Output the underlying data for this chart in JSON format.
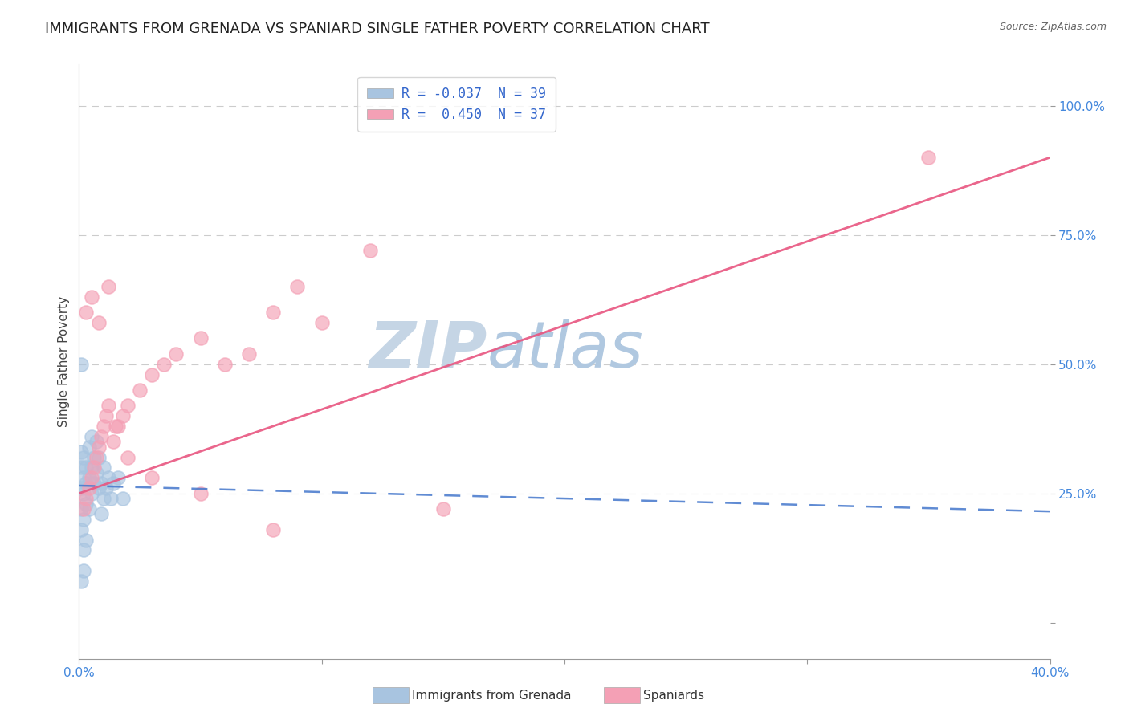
{
  "title": "IMMIGRANTS FROM GRENADA VS SPANIARD SINGLE FATHER POVERTY CORRELATION CHART",
  "source": "Source: ZipAtlas.com",
  "ylabel": "Single Father Poverty",
  "yticks": [
    0.0,
    0.25,
    0.5,
    0.75,
    1.0
  ],
  "ytick_labels": [
    "",
    "25.0%",
    "50.0%",
    "75.0%",
    "100.0%"
  ],
  "xlim": [
    0.0,
    0.4
  ],
  "ylim": [
    -0.07,
    1.08
  ],
  "grenada_R": -0.037,
  "grenada_N": 39,
  "spaniard_R": 0.45,
  "spaniard_N": 37,
  "grenada_color": "#a8c4e0",
  "spaniard_color": "#f4a0b5",
  "grenada_line_color": "#4477cc",
  "spaniard_line_color": "#e85580",
  "background_color": "#ffffff",
  "watermark_zip": "ZIP",
  "watermark_atlas": "atlas",
  "watermark_color_zip": "#c8d8e8",
  "watermark_color_atlas": "#b8cce0",
  "grenada_x": [
    0.001,
    0.001,
    0.001,
    0.001,
    0.001,
    0.002,
    0.002,
    0.002,
    0.002,
    0.002,
    0.002,
    0.003,
    0.003,
    0.003,
    0.003,
    0.004,
    0.004,
    0.004,
    0.005,
    0.005,
    0.005,
    0.006,
    0.006,
    0.007,
    0.007,
    0.008,
    0.008,
    0.009,
    0.009,
    0.01,
    0.01,
    0.011,
    0.012,
    0.013,
    0.014,
    0.016,
    0.018,
    0.001,
    0.001
  ],
  "grenada_y": [
    0.26,
    0.3,
    0.33,
    0.22,
    0.18,
    0.28,
    0.32,
    0.25,
    0.2,
    0.14,
    0.1,
    0.3,
    0.27,
    0.23,
    0.16,
    0.34,
    0.28,
    0.22,
    0.36,
    0.3,
    0.25,
    0.32,
    0.27,
    0.35,
    0.29,
    0.32,
    0.26,
    0.27,
    0.21,
    0.3,
    0.24,
    0.26,
    0.28,
    0.24,
    0.27,
    0.28,
    0.24,
    0.08,
    0.5
  ],
  "spaniard_x": [
    0.002,
    0.003,
    0.004,
    0.005,
    0.006,
    0.007,
    0.008,
    0.009,
    0.01,
    0.011,
    0.012,
    0.014,
    0.016,
    0.018,
    0.02,
    0.025,
    0.03,
    0.035,
    0.04,
    0.05,
    0.06,
    0.07,
    0.08,
    0.09,
    0.1,
    0.12,
    0.003,
    0.005,
    0.008,
    0.012,
    0.015,
    0.02,
    0.03,
    0.05,
    0.08,
    0.15,
    0.35
  ],
  "spaniard_y": [
    0.22,
    0.24,
    0.26,
    0.28,
    0.3,
    0.32,
    0.34,
    0.36,
    0.38,
    0.4,
    0.42,
    0.35,
    0.38,
    0.4,
    0.42,
    0.45,
    0.48,
    0.5,
    0.52,
    0.55,
    0.5,
    0.52,
    0.6,
    0.65,
    0.58,
    0.72,
    0.6,
    0.63,
    0.58,
    0.65,
    0.38,
    0.32,
    0.28,
    0.25,
    0.18,
    0.22,
    0.9
  ],
  "grenada_line_x": [
    0.0,
    0.4
  ],
  "grenada_line_y": [
    0.265,
    0.215
  ],
  "spaniard_line_x": [
    0.0,
    0.4
  ],
  "spaniard_line_y": [
    0.25,
    0.9
  ],
  "legend_grenada": "Immigrants from Grenada",
  "legend_spaniard": "Spaniards",
  "title_fontsize": 13,
  "axis_label_fontsize": 11,
  "tick_fontsize": 11,
  "legend_fontsize": 12
}
